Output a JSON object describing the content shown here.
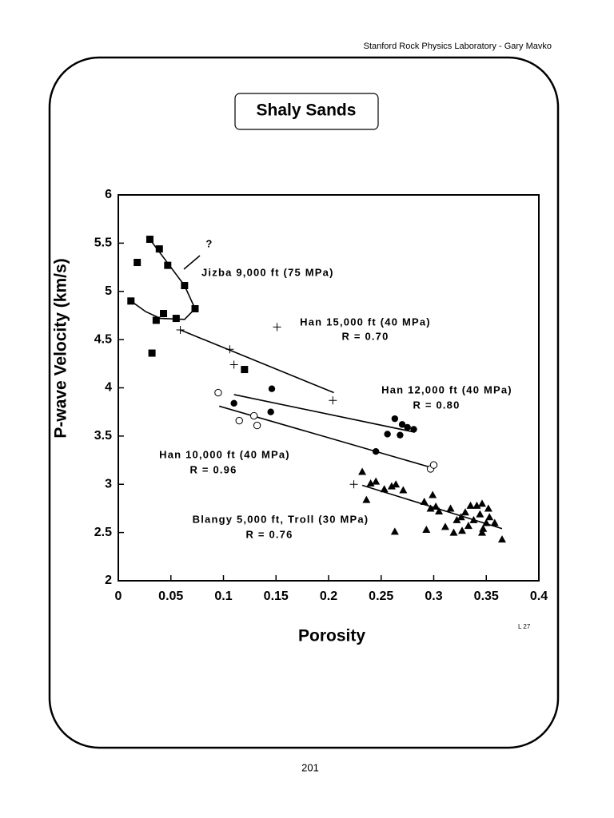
{
  "header": "Stanford Rock Physics Laboratory - Gary Mavko",
  "page_number": "201",
  "chart_data": {
    "type": "scatter",
    "title": "Shaly Sands",
    "xlabel": "Porosity",
    "ylabel": "P-wave Velocity (km/s)",
    "note": "L 27",
    "xlim": [
      0,
      0.4
    ],
    "ylim": [
      2,
      6
    ],
    "xticks": [
      0,
      0.05,
      0.1,
      0.15,
      0.2,
      0.25,
      0.3,
      0.35,
      0.4
    ],
    "yticks": [
      2,
      2.5,
      3,
      3.5,
      4,
      4.5,
      5,
      5.5,
      6
    ],
    "color": "#000000",
    "series": [
      {
        "marker": "square",
        "x": [
          0.03,
          0.018,
          0.039,
          0.047,
          0.063,
          0.073,
          0.012,
          0.036,
          0.043,
          0.055,
          0.032,
          0.12
        ],
        "y": [
          5.54,
          5.3,
          5.44,
          5.27,
          5.06,
          4.82,
          4.9,
          4.7,
          4.77,
          4.72,
          4.36,
          4.19
        ]
      },
      {
        "marker": "plus",
        "x": [
          0.059,
          0.106,
          0.11,
          0.151,
          0.204,
          0.224
        ],
        "y": [
          4.6,
          4.4,
          4.24,
          4.63,
          3.87,
          3.0
        ]
      },
      {
        "marker": "circle",
        "x": [
          0.11,
          0.146,
          0.145,
          0.245,
          0.263,
          0.27,
          0.275,
          0.281,
          0.256,
          0.268
        ],
        "y": [
          3.84,
          3.99,
          3.75,
          3.34,
          3.68,
          3.62,
          3.59,
          3.57,
          3.52,
          3.51
        ]
      },
      {
        "marker": "open-circle",
        "x": [
          0.095,
          0.115,
          0.129,
          0.132,
          0.297,
          0.3
        ],
        "y": [
          3.95,
          3.66,
          3.71,
          3.61,
          3.16,
          3.2
        ]
      },
      {
        "marker": "triangle",
        "x": [
          0.232,
          0.236,
          0.24,
          0.245,
          0.253,
          0.26,
          0.264,
          0.263,
          0.271,
          0.291,
          0.293,
          0.297,
          0.299,
          0.302,
          0.305,
          0.311,
          0.316,
          0.319,
          0.322,
          0.326,
          0.327,
          0.33,
          0.333,
          0.335,
          0.338,
          0.341,
          0.344,
          0.346,
          0.346,
          0.35,
          0.352,
          0.353,
          0.358,
          0.365,
          0.347
        ],
        "y": [
          3.13,
          2.84,
          3.01,
          3.03,
          2.95,
          2.98,
          3.0,
          2.51,
          2.94,
          2.82,
          2.53,
          2.75,
          2.89,
          2.77,
          2.72,
          2.56,
          2.75,
          2.5,
          2.63,
          2.66,
          2.52,
          2.71,
          2.57,
          2.78,
          2.63,
          2.78,
          2.69,
          2.8,
          2.5,
          2.6,
          2.75,
          2.66,
          2.6,
          2.43,
          2.54
        ]
      }
    ],
    "lines": [
      {
        "x": [
          0.03,
          0.063,
          0.073
        ],
        "y": [
          5.54,
          5.06,
          4.82
        ]
      },
      {
        "x": [
          0.012,
          0.026,
          0.04,
          0.063,
          0.073
        ],
        "y": [
          4.9,
          4.79,
          4.72,
          4.71,
          4.82
        ]
      },
      {
        "x": [
          0.059,
          0.205
        ],
        "y": [
          4.6,
          3.95
        ]
      },
      {
        "x": [
          0.11,
          0.282
        ],
        "y": [
          3.93,
          3.54
        ]
      },
      {
        "x": [
          0.096,
          0.299
        ],
        "y": [
          3.81,
          3.17
        ]
      },
      {
        "x": [
          0.232,
          0.365
        ],
        "y": [
          2.99,
          2.54
        ]
      }
    ],
    "annotations": [
      "?",
      "Jizba 9,000 ft (75 MPa)",
      "Han 15,000 ft (40 MPa)",
      "R = 0.70",
      "Han 12,000 ft (40 MPa)",
      "R = 0.80",
      "Han 10,000 ft (40 MPa)",
      "R = 0.96",
      "Blangy 5,000 ft, Troll (30 MPa)",
      "R = 0.76"
    ]
  }
}
